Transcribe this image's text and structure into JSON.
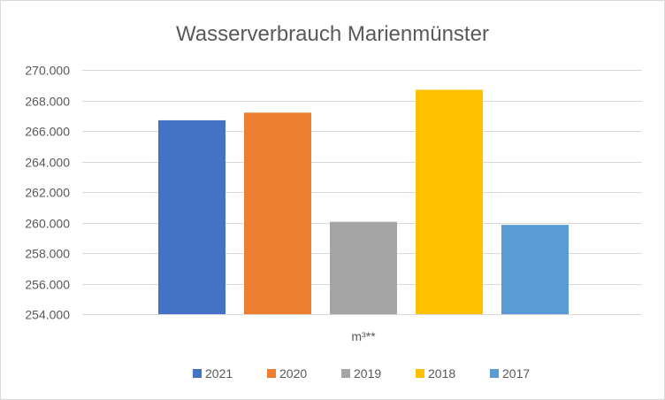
{
  "chart_data": {
    "type": "bar",
    "title": "Wasserverbrauch  Marienmünster",
    "categories": [
      "m³**"
    ],
    "series": [
      {
        "name": "2021",
        "values": [
          266700
        ],
        "color": "#4472c4"
      },
      {
        "name": "2020",
        "values": [
          267200
        ],
        "color": "#ed7d31"
      },
      {
        "name": "2019",
        "values": [
          260050
        ],
        "color": "#a5a5a5"
      },
      {
        "name": "2018",
        "values": [
          268700
        ],
        "color": "#ffc000"
      },
      {
        "name": "2017",
        "values": [
          259850
        ],
        "color": "#5b9bd5"
      }
    ],
    "ylim": [
      254000,
      270000
    ],
    "yticks": [
      {
        "value": 254000,
        "label": "254.000"
      },
      {
        "value": 256000,
        "label": "256.000"
      },
      {
        "value": 258000,
        "label": "258.000"
      },
      {
        "value": 260000,
        "label": "260.000"
      },
      {
        "value": 262000,
        "label": "262.000"
      },
      {
        "value": 264000,
        "label": "264.000"
      },
      {
        "value": 266000,
        "label": "266.000"
      },
      {
        "value": 268000,
        "label": "268.000"
      },
      {
        "value": 270000,
        "label": "270.000"
      }
    ],
    "grid": true,
    "legend": "bottom"
  }
}
